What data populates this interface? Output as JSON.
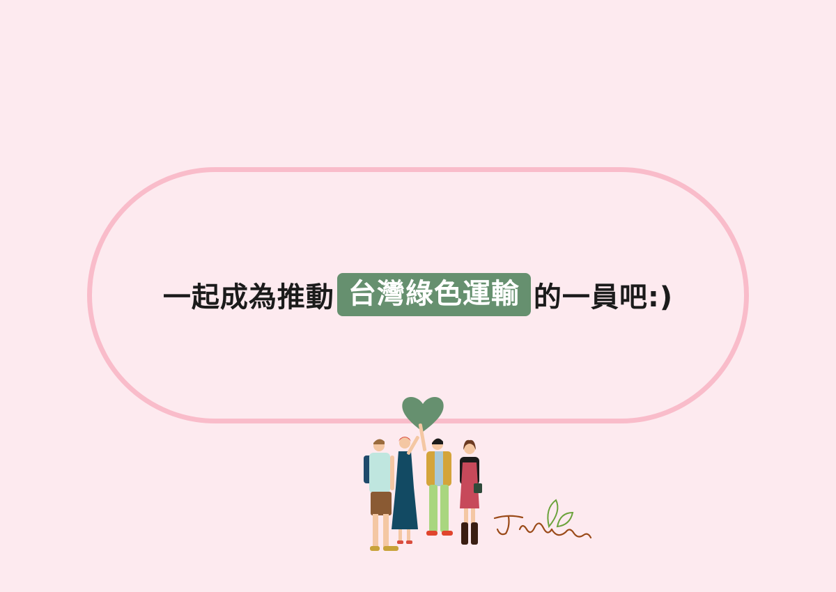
{
  "headline": {
    "prefix": "一起成為推動",
    "highlight": "台灣綠色運輸",
    "suffix": "的一員吧:)"
  },
  "colors": {
    "background": "#fdeaef",
    "frame_border": "#f9bcca",
    "highlight_bg": "#66906f",
    "heart": "#66906f"
  },
  "illustration": {
    "figures": [
      "person-with-backpack",
      "woman-in-long-dress",
      "man-holding-heart",
      "woman-with-book"
    ],
    "icon": "heart-icon",
    "signature_text": "Jasfee"
  }
}
